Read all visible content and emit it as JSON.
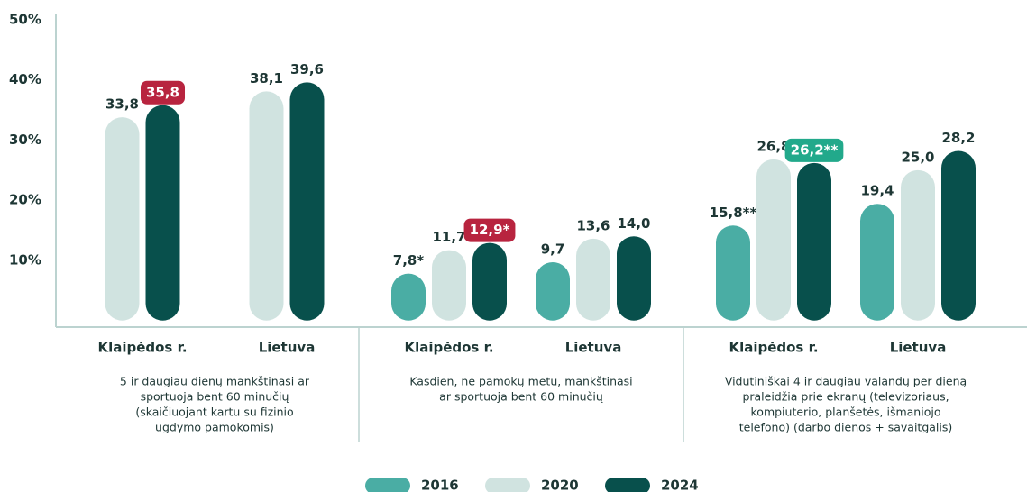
{
  "chart_data": {
    "type": "bar",
    "ylim": [
      0,
      50
    ],
    "yticks": [
      {
        "value": 10,
        "label": "10%"
      },
      {
        "value": 20,
        "label": "20%"
      },
      {
        "value": 30,
        "label": "30%"
      },
      {
        "value": 40,
        "label": "40%"
      },
      {
        "value": 50,
        "label": "50%"
      }
    ],
    "groups": [
      [
        "5 ir daugiau dienų mankštinasi ar",
        "sportuoja bent 60 minučių",
        "(skaičiuojant kartu su fizinio",
        "ugdymo pamokomis)"
      ],
      [
        "Kasdien, ne pamokų metu, mankštinasi",
        "ar sportuoja bent 60 minučių"
      ],
      [
        "Vidutiniškai 4 ir daugiau valandų per dieną",
        "praleidžia prie ekranų (televizoriaus,",
        "kompiuterio, planšetės, išmaniojo",
        "telefono) (darbo dienos + savaitgalis)"
      ]
    ],
    "categories": [
      "Klaipėdos r.",
      "Lietuva",
      "Klaipėdos r.",
      "Lietuva",
      "Klaipėdos r.",
      "Lietuva"
    ],
    "series": [
      {
        "name": "2016",
        "color": "#4aada4",
        "values": [
          null,
          null,
          7.8,
          9.7,
          15.8,
          19.4
        ],
        "value_labels": [
          null,
          null,
          "7,8*",
          "9,7",
          "15,8**",
          "19,4"
        ],
        "label_backgrounds": [
          null,
          null,
          null,
          null,
          null,
          null
        ]
      },
      {
        "name": "2020",
        "color": "#d0e3e0",
        "values": [
          33.8,
          38.1,
          11.7,
          13.6,
          26.8,
          25.0
        ],
        "value_labels": [
          "33,8",
          "38,1",
          "11,7",
          "13,6",
          "26,8",
          "25,0"
        ],
        "label_backgrounds": [
          null,
          null,
          null,
          null,
          null,
          null
        ]
      },
      {
        "name": "2024",
        "color": "#08504c",
        "values": [
          35.8,
          39.6,
          12.9,
          14.0,
          26.2,
          28.2
        ],
        "value_labels": [
          "35,8",
          "39,6",
          "12,9*",
          "14,0",
          "26,2**",
          "28,2"
        ],
        "label_backgrounds": [
          "#b8243f",
          null,
          "#b8243f",
          null,
          "#22a98b",
          null
        ]
      }
    ]
  }
}
